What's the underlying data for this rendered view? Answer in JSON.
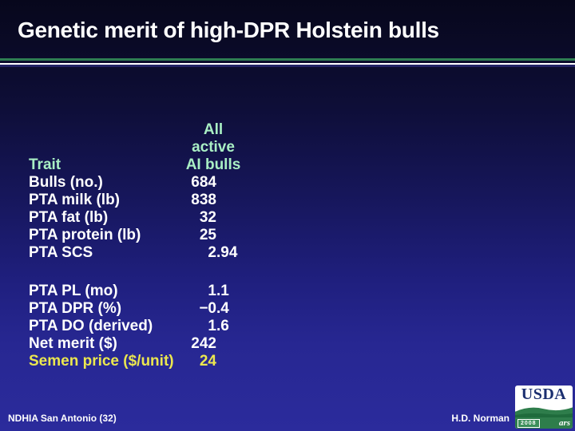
{
  "slide": {
    "title": "Genetic merit of high-DPR Holstein bulls"
  },
  "table": {
    "header": {
      "trait_label": "Trait",
      "value_lines": [
        "All",
        "active",
        "AI bulls"
      ]
    },
    "rows": [
      {
        "label": "Bulls (no.)",
        "value": "684"
      },
      {
        "label": "PTA milk (lb)",
        "value": "838"
      },
      {
        "label": "PTA fat (lb)",
        "value": "32"
      },
      {
        "label": "PTA protein (lb)",
        "value": "25"
      },
      {
        "label": "PTA SCS",
        "value": "2.94"
      },
      {
        "label": "PTA PL (mo)",
        "value": "1.1",
        "gap_before": true
      },
      {
        "label": "PTA DPR (%)",
        "value": "−0.4"
      },
      {
        "label": "PTA DO (derived)",
        "value": "1.6"
      },
      {
        "label": "Net merit ($)",
        "value": "242"
      },
      {
        "label": "Semen price ($/unit)",
        "value": "24",
        "highlight": true
      }
    ]
  },
  "footer": {
    "left": "NDHIA San Antonio (32)",
    "right": "H.D. Norman",
    "logo": {
      "org": "USDA",
      "year": "2008",
      "agency": "ars"
    }
  },
  "colors": {
    "bg_top": "#07071c",
    "bg_bottom": "#2b2b9c",
    "text_white": "#ffffff",
    "header_green": "#a9efc4",
    "highlight_yellow": "#ebe74f",
    "line_green": "#2e7d52",
    "logo_navy": "#1b2f70",
    "logo_green": "#2e7d4b"
  }
}
